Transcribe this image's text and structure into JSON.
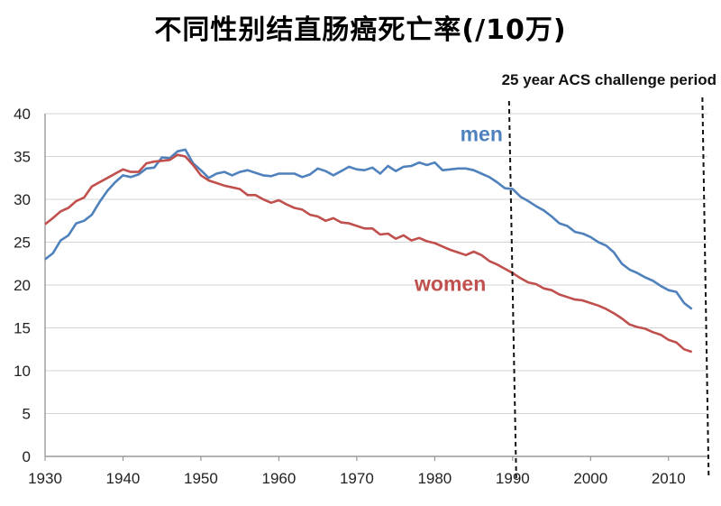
{
  "chart_data": {
    "type": "line",
    "title": "不同性别结直肠癌死亡率(/10万)",
    "xlim": [
      1930,
      2015
    ],
    "ylim": [
      0,
      40
    ],
    "x_ticks": [
      1930,
      1940,
      1950,
      1960,
      1970,
      1980,
      1990,
      2000,
      2010
    ],
    "y_ticks": [
      0,
      5,
      10,
      15,
      20,
      25,
      30,
      35,
      40
    ],
    "grid": "horizontal",
    "annotation": {
      "text": "25 year ACS challenge period",
      "x_start": 1990,
      "x_end": 2014
    },
    "series": [
      {
        "name": "men",
        "color": "#4F81BD",
        "x": [
          1930,
          1931,
          1932,
          1933,
          1934,
          1935,
          1936,
          1937,
          1938,
          1939,
          1940,
          1941,
          1942,
          1943,
          1944,
          1945,
          1946,
          1947,
          1948,
          1949,
          1950,
          1951,
          1952,
          1953,
          1954,
          1955,
          1956,
          1957,
          1958,
          1959,
          1960,
          1961,
          1962,
          1963,
          1964,
          1965,
          1966,
          1967,
          1968,
          1969,
          1970,
          1971,
          1972,
          1973,
          1974,
          1975,
          1976,
          1977,
          1978,
          1979,
          1980,
          1981,
          1982,
          1983,
          1984,
          1985,
          1986,
          1987,
          1988,
          1989,
          1990,
          1991,
          1992,
          1993,
          1994,
          1995,
          1996,
          1997,
          1998,
          1999,
          2000,
          2001,
          2002,
          2003,
          2004,
          2005,
          2006,
          2007,
          2008,
          2009,
          2010,
          2011,
          2012,
          2013
        ],
        "values": [
          23.0,
          23.7,
          25.2,
          25.8,
          27.2,
          27.5,
          28.2,
          29.7,
          31.0,
          32.0,
          32.8,
          32.6,
          32.9,
          33.6,
          33.7,
          34.9,
          34.8,
          35.6,
          35.8,
          34.2,
          33.4,
          32.5,
          33.0,
          33.2,
          32.8,
          33.2,
          33.4,
          33.1,
          32.8,
          32.7,
          33.0,
          33.0,
          33.0,
          32.6,
          32.9,
          33.6,
          33.3,
          32.8,
          33.3,
          33.8,
          33.5,
          33.4,
          33.7,
          33.0,
          33.9,
          33.3,
          33.8,
          33.9,
          34.3,
          34.0,
          34.3,
          33.4,
          33.5,
          33.6,
          33.6,
          33.4,
          33.0,
          32.6,
          32.0,
          31.3,
          31.2,
          30.3,
          29.8,
          29.2,
          28.7,
          28.0,
          27.2,
          26.9,
          26.2,
          26.0,
          25.6,
          25.0,
          24.6,
          23.8,
          22.5,
          21.8,
          21.4,
          20.9,
          20.5,
          19.9,
          19.4,
          19.2,
          17.9,
          17.2
        ]
      },
      {
        "name": "women",
        "color": "#C0504D",
        "x": [
          1930,
          1931,
          1932,
          1933,
          1934,
          1935,
          1936,
          1937,
          1938,
          1939,
          1940,
          1941,
          1942,
          1943,
          1944,
          1945,
          1946,
          1947,
          1948,
          1949,
          1950,
          1951,
          1952,
          1953,
          1954,
          1955,
          1956,
          1957,
          1958,
          1959,
          1960,
          1961,
          1962,
          1963,
          1964,
          1965,
          1966,
          1967,
          1968,
          1969,
          1970,
          1971,
          1972,
          1973,
          1974,
          1975,
          1976,
          1977,
          1978,
          1979,
          1980,
          1981,
          1982,
          1983,
          1984,
          1985,
          1986,
          1987,
          1988,
          1989,
          1990,
          1991,
          1992,
          1993,
          1994,
          1995,
          1996,
          1997,
          1998,
          1999,
          2000,
          2001,
          2002,
          2003,
          2004,
          2005,
          2006,
          2007,
          2008,
          2009,
          2010,
          2011,
          2012,
          2013
        ],
        "values": [
          27.1,
          27.8,
          28.6,
          29.0,
          29.8,
          30.2,
          31.5,
          32.0,
          32.5,
          33.0,
          33.5,
          33.2,
          33.2,
          34.2,
          34.4,
          34.5,
          34.6,
          35.2,
          35.0,
          34.0,
          32.8,
          32.2,
          31.9,
          31.6,
          31.4,
          31.2,
          30.5,
          30.5,
          30.0,
          29.6,
          29.9,
          29.4,
          29.0,
          28.8,
          28.2,
          28.0,
          27.5,
          27.8,
          27.3,
          27.2,
          26.9,
          26.6,
          26.6,
          25.9,
          26.0,
          25.4,
          25.8,
          25.2,
          25.5,
          25.1,
          24.9,
          24.5,
          24.1,
          23.8,
          23.5,
          23.9,
          23.5,
          22.8,
          22.4,
          21.9,
          21.4,
          20.8,
          20.3,
          20.1,
          19.6,
          19.4,
          18.9,
          18.6,
          18.3,
          18.2,
          17.9,
          17.6,
          17.2,
          16.7,
          16.1,
          15.4,
          15.1,
          14.9,
          14.5,
          14.2,
          13.6,
          13.3,
          12.5,
          12.2
        ]
      }
    ]
  }
}
